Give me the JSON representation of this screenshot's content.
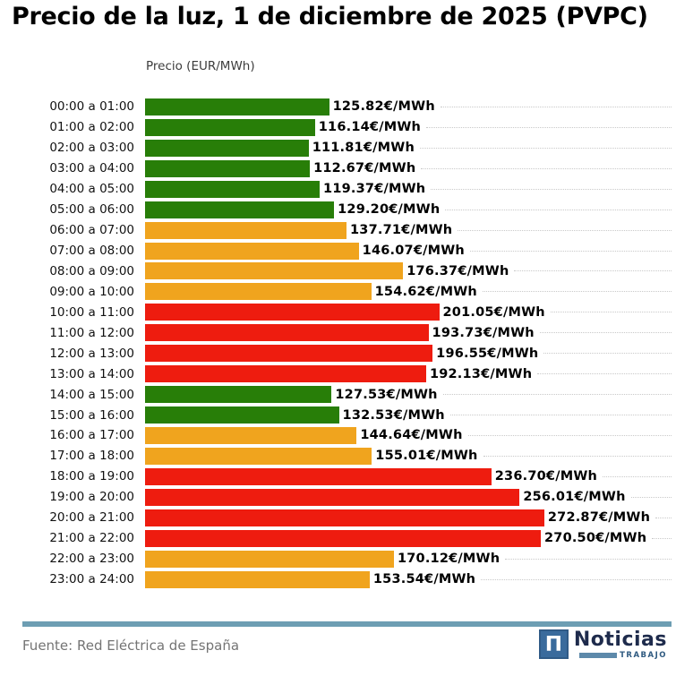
{
  "page": {
    "title": "Precio de la luz, 1 de diciembre de 2025 (PVPC)"
  },
  "chart_data": {
    "type": "bar",
    "orientation": "horizontal",
    "title": "Precio de la luz, 1 de diciembre de 2025 (PVPC)",
    "axis_label": "Precio (EUR/MWh)",
    "unit_suffix": "€/MWh",
    "xlim": [
      0,
      290
    ],
    "grid": "dotted row guide lines to right edge",
    "legend": "none",
    "band_colors": {
      "green": "#287e08",
      "orange": "#f0a41e",
      "red": "#ee1c0f"
    },
    "rows": [
      {
        "hour": "00:00 a 01:00",
        "value": 125.82,
        "label": "125.82€/MWh",
        "band": "green"
      },
      {
        "hour": "01:00 a 02:00",
        "value": 116.14,
        "label": "116.14€/MWh",
        "band": "green"
      },
      {
        "hour": "02:00 a 03:00",
        "value": 111.81,
        "label": "111.81€/MWh",
        "band": "green"
      },
      {
        "hour": "03:00 a 04:00",
        "value": 112.67,
        "label": "112.67€/MWh",
        "band": "green"
      },
      {
        "hour": "04:00 a 05:00",
        "value": 119.37,
        "label": "119.37€/MWh",
        "band": "green"
      },
      {
        "hour": "05:00 a 06:00",
        "value": 129.2,
        "label": "129.20€/MWh",
        "band": "green"
      },
      {
        "hour": "06:00 a 07:00",
        "value": 137.71,
        "label": "137.71€/MWh",
        "band": "orange"
      },
      {
        "hour": "07:00 a 08:00",
        "value": 146.07,
        "label": "146.07€/MWh",
        "band": "orange"
      },
      {
        "hour": "08:00 a 09:00",
        "value": 176.37,
        "label": "176.37€/MWh",
        "band": "orange"
      },
      {
        "hour": "09:00 a 10:00",
        "value": 154.62,
        "label": "154.62€/MWh",
        "band": "orange"
      },
      {
        "hour": "10:00 a 11:00",
        "value": 201.05,
        "label": "201.05€/MWh",
        "band": "red"
      },
      {
        "hour": "11:00 a 12:00",
        "value": 193.73,
        "label": "193.73€/MWh",
        "band": "red"
      },
      {
        "hour": "12:00 a 13:00",
        "value": 196.55,
        "label": "196.55€/MWh",
        "band": "red"
      },
      {
        "hour": "13:00 a 14:00",
        "value": 192.13,
        "label": "192.13€/MWh",
        "band": "red"
      },
      {
        "hour": "14:00 a 15:00",
        "value": 127.53,
        "label": "127.53€/MWh",
        "band": "green"
      },
      {
        "hour": "15:00 a 16:00",
        "value": 132.53,
        "label": "132.53€/MWh",
        "band": "green"
      },
      {
        "hour": "16:00 a 17:00",
        "value": 144.64,
        "label": "144.64€/MWh",
        "band": "orange"
      },
      {
        "hour": "17:00 a 18:00",
        "value": 155.01,
        "label": "155.01€/MWh",
        "band": "orange"
      },
      {
        "hour": "18:00 a 19:00",
        "value": 236.7,
        "label": "236.70€/MWh",
        "band": "red"
      },
      {
        "hour": "19:00 a 20:00",
        "value": 256.01,
        "label": "256.01€/MWh",
        "band": "red"
      },
      {
        "hour": "20:00 a 21:00",
        "value": 272.87,
        "label": "272.87€/MWh",
        "band": "red"
      },
      {
        "hour": "21:00 a 22:00",
        "value": 270.5,
        "label": "270.50€/MWh",
        "band": "red"
      },
      {
        "hour": "22:00 a 23:00",
        "value": 170.12,
        "label": "170.12€/MWh",
        "band": "orange"
      },
      {
        "hour": "23:00 a 24:00",
        "value": 153.54,
        "label": "153.54€/MWh",
        "band": "orange"
      }
    ]
  },
  "footer": {
    "source": "Fuente: Red Eléctrica de España",
    "divider_color": "#6d9eb3",
    "logo": {
      "symbol": "Π",
      "brand": "Noticias",
      "sub_brand": "TRABAJO"
    }
  }
}
